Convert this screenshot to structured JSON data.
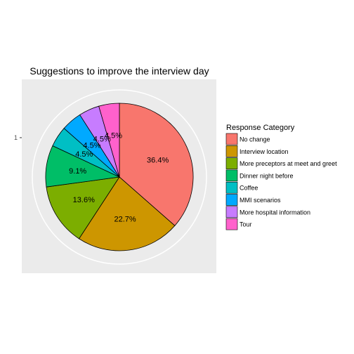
{
  "chart_data": {
    "type": "pie",
    "title": "Suggestions to improve the interview day",
    "legend_title": "Response Category",
    "legend_position": "right",
    "y_tick_label": "1",
    "slices": [
      {
        "name": "No change",
        "value": 36.4,
        "label": "36.4%",
        "color": "#F8766D"
      },
      {
        "name": "Interview location",
        "value": 22.7,
        "label": "22.7%",
        "color": "#CD9600"
      },
      {
        "name": "More preceptors at meet and greet",
        "value": 13.6,
        "label": "13.6%",
        "color": "#7CAE00"
      },
      {
        "name": "Dinner night before",
        "value": 9.1,
        "label": "9.1%",
        "color": "#00BE67"
      },
      {
        "name": "Coffee",
        "value": 4.5,
        "label": "4.5%",
        "color": "#00BFC4"
      },
      {
        "name": "MMI scenarios",
        "value": 4.5,
        "label": "4.5%",
        "color": "#00A9FF"
      },
      {
        "name": "More hospital information",
        "value": 4.5,
        "label": "4.5%",
        "color": "#C77CFF"
      },
      {
        "name": "Tour",
        "value": 4.5,
        "label": "4.5%",
        "color": "#FF61CC"
      }
    ]
  }
}
